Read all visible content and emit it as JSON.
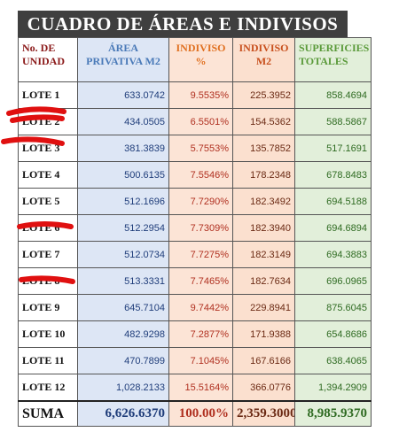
{
  "title": "CUADRO DE ÁREAS E INDIVISOS",
  "header": [
    "No. DE UNIDAD",
    "ÁREA PRIVATIVA M2",
    "INDIVISO %",
    "INDIVISO M2",
    "SUPERFICIES TOTALES"
  ],
  "rows": [
    [
      "LOTE 1",
      "633.0742",
      "9.5535%",
      "225.3952",
      "858.4694"
    ],
    [
      "LOTE 2",
      "434.0505",
      "6.5501%",
      "154.5362",
      "588.5867"
    ],
    [
      "LOTE 3",
      "381.3839",
      "5.7553%",
      "135.7852",
      "517.1691"
    ],
    [
      "LOTE 4",
      "500.6135",
      "7.5546%",
      "178.2348",
      "678.8483"
    ],
    [
      "LOTE 5",
      "512.1696",
      "7.7290%",
      "182.3492",
      "694.5188"
    ],
    [
      "LOTE 6",
      "512.2954",
      "7.7309%",
      "182.3940",
      "694.6894"
    ],
    [
      "LOTE 7",
      "512.0734",
      "7.7275%",
      "182.3149",
      "694.3883"
    ],
    [
      "LOTE 8",
      "513.3331",
      "7.7465%",
      "182.7634",
      "696.0965"
    ],
    [
      "LOTE 9",
      "645.7104",
      "9.7442%",
      "229.8941",
      "875.6045"
    ],
    [
      "LOTE 10",
      "482.9298",
      "7.2877%",
      "171.9388",
      "654.8686"
    ],
    [
      "LOTE 11",
      "470.7899",
      "7.1045%",
      "167.6166",
      "638.4065"
    ],
    [
      "LOTE 12",
      "1,028.2133",
      "15.5164%",
      "366.0776",
      "1,394.2909"
    ]
  ],
  "total": [
    "SUMA",
    "6,626.6370",
    "100.00%",
    "2,359.3000",
    "8,985.9370"
  ]
}
